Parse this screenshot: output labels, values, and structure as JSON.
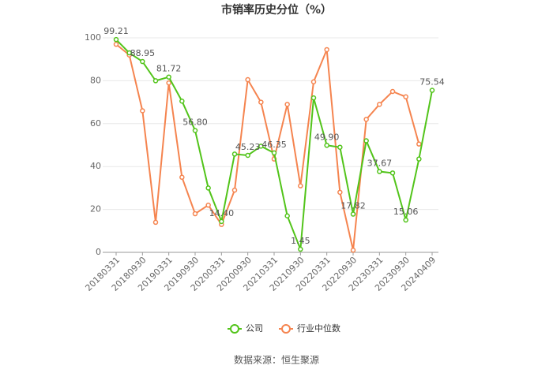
{
  "chart_data": {
    "type": "line",
    "title": "市销率历史分位（%）",
    "source": "数据来源：恒生聚源",
    "categories": [
      "20180331",
      null,
      "20180930",
      null,
      "20190331",
      null,
      "20190930",
      null,
      "20200331",
      null,
      "20200930",
      null,
      "20210331",
      null,
      "20210930",
      null,
      "20220331",
      null,
      "20220930",
      null,
      "20230331",
      null,
      "20230930",
      null,
      "20240409"
    ],
    "series": [
      {
        "name": "公司",
        "color": "#52c41a",
        "values": [
          99.21,
          93,
          88.95,
          80,
          81.72,
          70.5,
          56.8,
          30,
          14.4,
          45.8,
          45.23,
          49.5,
          46.35,
          17,
          1.45,
          72,
          49.9,
          49,
          17.82,
          52,
          37.67,
          37,
          15.06,
          43.5,
          75.54
        ],
        "value_labels": [
          "99.21",
          null,
          "88.95",
          null,
          "81.72",
          null,
          "56.80",
          null,
          "14.40",
          null,
          "45.23",
          null,
          "46.35",
          null,
          "1.45",
          null,
          "49.90",
          null,
          "17.82",
          null,
          "37.67",
          null,
          "15.06",
          null,
          "75.54"
        ]
      },
      {
        "name": "行业中位数",
        "color": "#f5844f",
        "values": [
          97,
          92,
          66,
          14,
          79,
          35,
          18,
          22,
          13,
          29,
          80.5,
          70,
          43.5,
          69,
          31,
          79.5,
          94.5,
          28,
          1,
          62,
          69,
          75,
          72.5,
          50.5,
          null
        ]
      }
    ],
    "ylim": [
      0,
      100
    ],
    "yticks": [
      0,
      20,
      40,
      60,
      80,
      100
    ],
    "grid": true
  }
}
